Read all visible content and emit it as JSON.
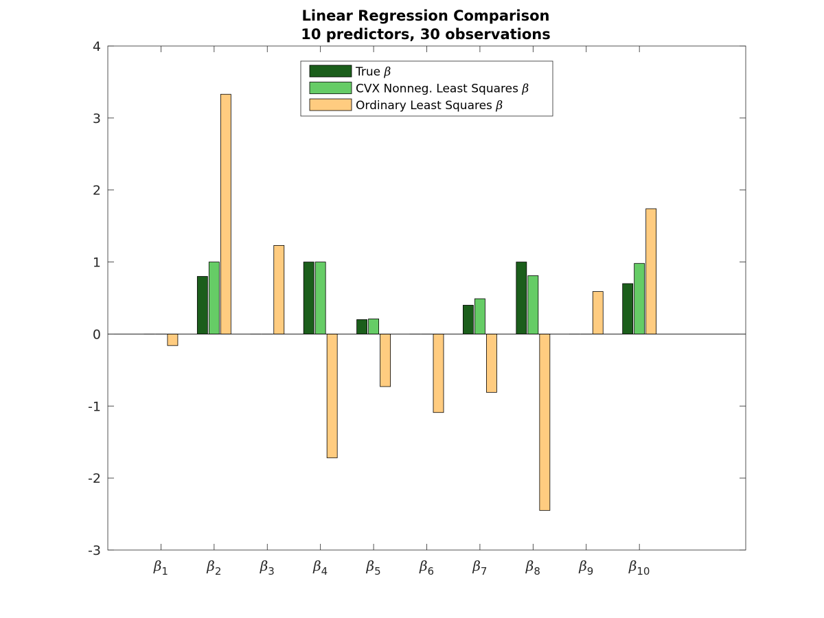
{
  "chart_data": {
    "type": "bar",
    "title": [
      "Linear Regression Comparison",
      "10 predictors, 30 observations"
    ],
    "xlabel": "",
    "ylabel": "",
    "ylim": [
      -3,
      4
    ],
    "yticks": [
      "-3",
      "-2",
      "-1",
      "0",
      "1",
      "2",
      "3",
      "4"
    ],
    "xlim": [
      0,
      12
    ],
    "categories": [
      {
        "symbol": "β",
        "sub": "1"
      },
      {
        "symbol": "β",
        "sub": "2"
      },
      {
        "symbol": "β",
        "sub": "3"
      },
      {
        "symbol": "β",
        "sub": "4"
      },
      {
        "symbol": "β",
        "sub": "5"
      },
      {
        "symbol": "β",
        "sub": "6"
      },
      {
        "symbol": "β",
        "sub": "7"
      },
      {
        "symbol": "β",
        "sub": "8"
      },
      {
        "symbol": "β",
        "sub": "9"
      },
      {
        "symbol": "β",
        "sub": "10"
      }
    ],
    "series": [
      {
        "name": "True",
        "name_symbol": "β",
        "color": "#1b5e1b",
        "values": [
          0,
          0.8,
          0,
          1.0,
          0.2,
          0,
          0.4,
          1.0,
          0,
          0.7
        ]
      },
      {
        "name": "CVX Nonneg. Least Squares",
        "name_symbol": "β",
        "color": "#66cc66",
        "values": [
          0,
          1.0,
          0,
          1.0,
          0.21,
          0,
          0.49,
          0.81,
          0,
          0.98
        ]
      },
      {
        "name": "Ordinary Least Squares",
        "name_symbol": "β",
        "color": "#ffcc80",
        "values": [
          -0.16,
          3.33,
          1.23,
          -1.72,
          -0.73,
          -1.09,
          -0.81,
          -2.45,
          0.59,
          1.74
        ]
      }
    ],
    "grid": false,
    "legend": "top-center"
  }
}
